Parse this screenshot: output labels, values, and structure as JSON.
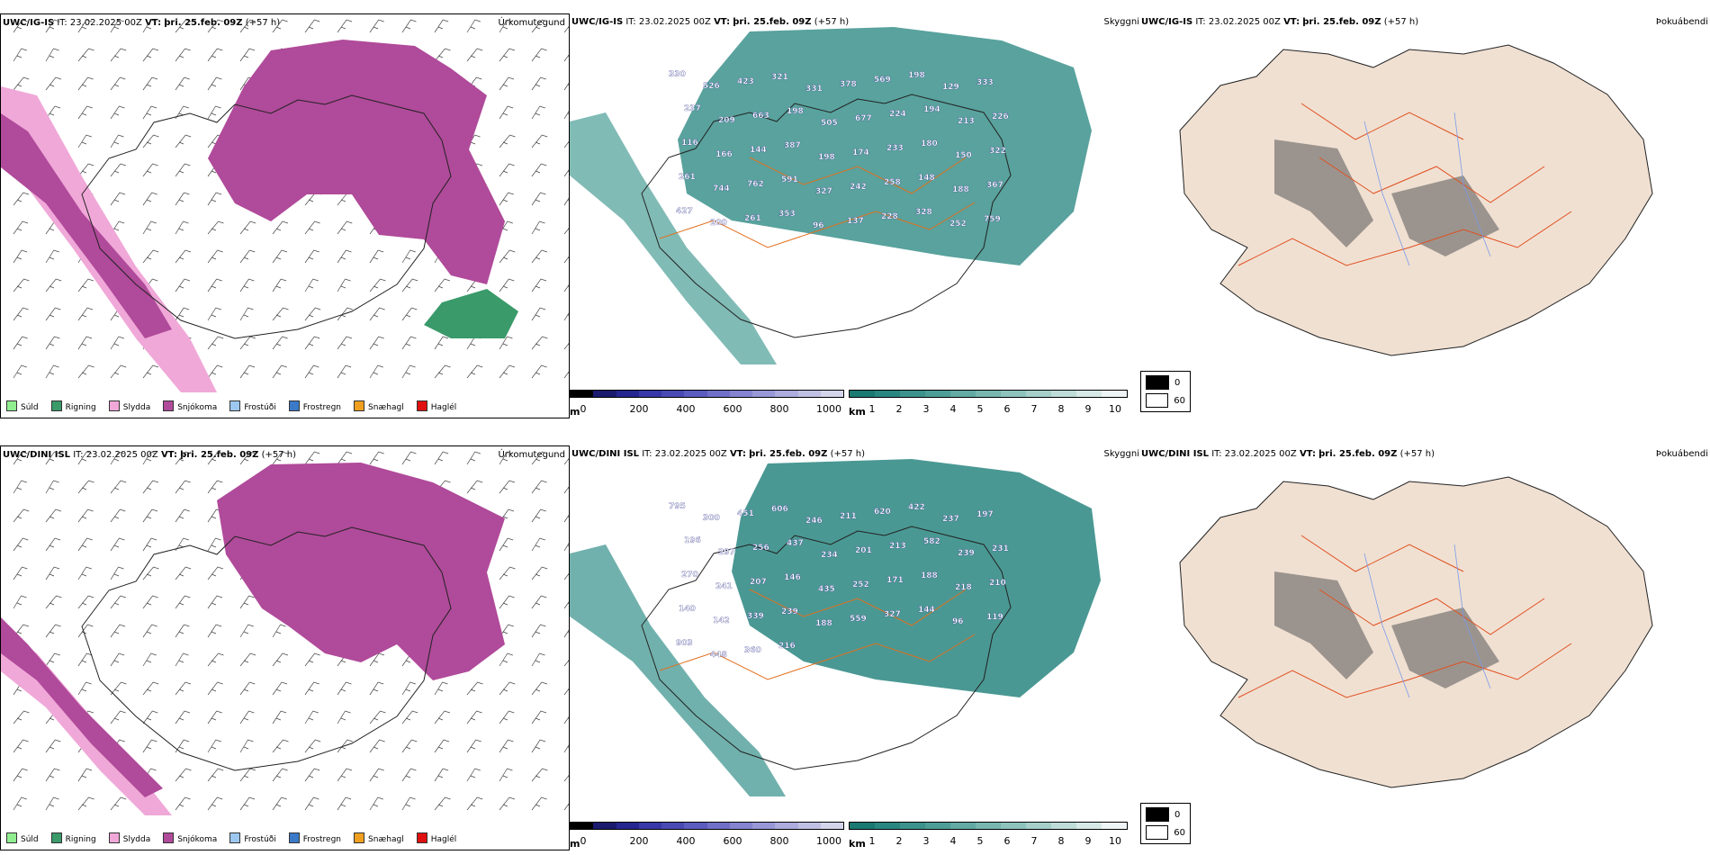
{
  "rows": [
    {
      "model": "UWC/IG-IS",
      "it_label": "IT:",
      "it_value": "23.02.2025 00Z",
      "vt_label": "VT:",
      "vt_value": "þri. 25.feb. 09Z",
      "lead": "(+57 h)"
    },
    {
      "model": "UWC/DINI ISL",
      "it_label": "IT:",
      "it_value": "23.02.2025 00Z",
      "vt_label": "VT:",
      "vt_value": "þri. 25.feb. 09Z",
      "lead": "(+57 h)"
    }
  ],
  "panel_titles": {
    "precip_type": "Úrkomutegund",
    "cloud_base": "Skyggni",
    "fog": "Þokuábendi"
  },
  "precip_legend": [
    {
      "label": "Súld",
      "color": "#90ee90"
    },
    {
      "label": "Rigning",
      "color": "#3a9a6a"
    },
    {
      "label": "Slydda",
      "color": "#f0a8d8"
    },
    {
      "label": "Snjókoma",
      "color": "#b04a9a"
    },
    {
      "label": "Frostúði",
      "color": "#9cc8f0"
    },
    {
      "label": "Frostregn",
      "color": "#3a7ac8"
    },
    {
      "label": "Snæhagl",
      "color": "#f0a020"
    },
    {
      "label": "Haglél",
      "color": "#e01010"
    }
  ],
  "height_bar": {
    "unit": "m",
    "ticks": [
      "0",
      "200",
      "400",
      "600",
      "800",
      "1000"
    ],
    "colors": [
      "#000000",
      "#1a1a6e",
      "#262690",
      "#3838a8",
      "#4a4ab4",
      "#5c5cc0",
      "#7070c8",
      "#8484d0",
      "#9898d8",
      "#acacde",
      "#c0c0e4",
      "#d4d4ea"
    ]
  },
  "vis_bar": {
    "unit": "km",
    "ticks": [
      "1",
      "2",
      "3",
      "4",
      "5",
      "6",
      "7",
      "8",
      "9",
      "10"
    ],
    "colors": [
      "#1a7a72",
      "#2a8680",
      "#3c928c",
      "#4e9e98",
      "#62aaa4",
      "#78b6b0",
      "#8ec2bd",
      "#a6cfca",
      "#bedcd8",
      "#d6e9e6",
      "#eef5f4"
    ]
  },
  "cloud_key": [
    {
      "label": "0",
      "color": "#000000"
    },
    {
      "label": "60",
      "color": "#ffffff"
    }
  ],
  "height_labels_top": [
    "330",
    "526",
    "423",
    "321",
    "331",
    "378",
    "569",
    "198",
    "129",
    "333",
    "237",
    "209",
    "663",
    "198",
    "505",
    "677",
    "224",
    "194",
    "213",
    "226",
    "116",
    "166",
    "144",
    "387",
    "198",
    "174",
    "233",
    "180",
    "150",
    "322",
    "261",
    "744",
    "762",
    "591",
    "327",
    "242",
    "258",
    "148",
    "188",
    "367",
    "427",
    "200",
    "261",
    "353",
    "96",
    "137",
    "228",
    "328",
    "252",
    "759"
  ],
  "height_labels_bottom": [
    "795",
    "300",
    "451",
    "606",
    "246",
    "211",
    "620",
    "422",
    "237",
    "197",
    "196",
    "297",
    "256",
    "437",
    "234",
    "201",
    "213",
    "582",
    "239",
    "231",
    "270",
    "241",
    "207",
    "146",
    "435",
    "252",
    "171",
    "188",
    "218",
    "210",
    "140",
    "142",
    "339",
    "239",
    "188",
    "559",
    "327",
    "144",
    "96",
    "119",
    "903",
    "448",
    "360",
    "216"
  ]
}
